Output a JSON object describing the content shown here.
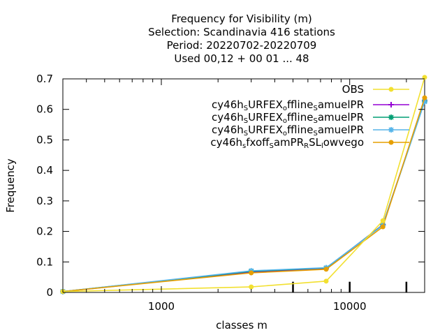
{
  "chart_data": {
    "type": "line",
    "title_lines": [
      "Frequency  for Visibility (m)",
      "Selection: Scandinavia    416 stations",
      "Period: 20220702-20220709",
      "Used  00,12  + 00 01 ... 48"
    ],
    "xlabel": "classes m",
    "ylabel": "Frequency",
    "x_scale": "log",
    "xlim": [
      300,
      25000
    ],
    "ylim": [
      0,
      0.7
    ],
    "x_ticks": [
      {
        "value": 1000,
        "label": "1000"
      },
      {
        "value": 10000,
        "label": "10000"
      }
    ],
    "y_ticks": [
      {
        "value": 0,
        "label": "0"
      },
      {
        "value": 0.1,
        "label": "0.1"
      },
      {
        "value": 0.2,
        "label": "0.2"
      },
      {
        "value": 0.3,
        "label": "0.3"
      },
      {
        "value": 0.4,
        "label": "0.4"
      },
      {
        "value": 0.5,
        "label": "0.5"
      },
      {
        "value": 0.6,
        "label": "0.6"
      },
      {
        "value": 0.7,
        "label": "0.7"
      }
    ],
    "grid": false,
    "legend_position": "top-right",
    "series": [
      {
        "name": "OBS",
        "color": "#f2e030",
        "marker": "circle",
        "x": [
          300,
          3000,
          7500,
          15000,
          25000
        ],
        "y": [
          0.003,
          0.018,
          0.037,
          0.235,
          0.705
        ]
      },
      {
        "name_parts": [
          {
            "t": "cy46h",
            "s": "n"
          },
          {
            "t": "S",
            "s": "sub"
          },
          {
            "t": "URFEX",
            "s": "n"
          },
          {
            "t": "o",
            "s": "sub"
          },
          {
            "t": "ffline",
            "s": "n"
          },
          {
            "t": "S",
            "s": "sub"
          },
          {
            "t": "amuelPR",
            "s": "n"
          }
        ],
        "color": "#9400d3",
        "marker": "plus",
        "x": [
          300,
          3000,
          7500,
          15000,
          25000
        ],
        "y": [
          0.003,
          0.066,
          0.079,
          0.222,
          0.628
        ]
      },
      {
        "name_parts": [
          {
            "t": "cy46h",
            "s": "n"
          },
          {
            "t": "S",
            "s": "sub"
          },
          {
            "t": "URFEX",
            "s": "n"
          },
          {
            "t": "o",
            "s": "sub"
          },
          {
            "t": "ffline",
            "s": "n"
          },
          {
            "t": "S",
            "s": "sub"
          },
          {
            "t": "amuelPR",
            "s": "n"
          }
        ],
        "color": "#009e73",
        "marker": "star",
        "x": [
          300,
          3000,
          7500,
          15000,
          25000
        ],
        "y": [
          0.003,
          0.069,
          0.08,
          0.221,
          0.627
        ]
      },
      {
        "name_parts": [
          {
            "t": "cy46h",
            "s": "n"
          },
          {
            "t": "S",
            "s": "sub"
          },
          {
            "t": "URFEX",
            "s": "n"
          },
          {
            "t": "o",
            "s": "sub"
          },
          {
            "t": "ffline",
            "s": "n"
          },
          {
            "t": "S",
            "s": "sub"
          },
          {
            "t": "amuelPR",
            "s": "n"
          }
        ],
        "color": "#56b4e9",
        "marker": "star",
        "x": [
          300,
          3000,
          7500,
          15000,
          25000
        ],
        "y": [
          0.003,
          0.071,
          0.081,
          0.22,
          0.625
        ]
      },
      {
        "name_parts": [
          {
            "t": "cy46h",
            "s": "n"
          },
          {
            "t": "s",
            "s": "sub"
          },
          {
            "t": "fxoff",
            "s": "n"
          },
          {
            "t": "S",
            "s": "sub"
          },
          {
            "t": "amPR",
            "s": "n"
          },
          {
            "t": "R",
            "s": "sub"
          },
          {
            "t": "SL",
            "s": "n"
          },
          {
            "t": "l",
            "s": "sub"
          },
          {
            "t": "owvego",
            "s": "n"
          }
        ],
        "color": "#e69f00",
        "marker": "circle",
        "x": [
          300,
          3000,
          7500,
          15000,
          25000
        ],
        "y": [
          0.003,
          0.064,
          0.076,
          0.215,
          0.638
        ]
      }
    ],
    "obs_bars": {
      "color": "#000000",
      "x": [
        5000,
        10000,
        20000
      ],
      "y": [
        0.035,
        0.035,
        0.035
      ]
    }
  }
}
